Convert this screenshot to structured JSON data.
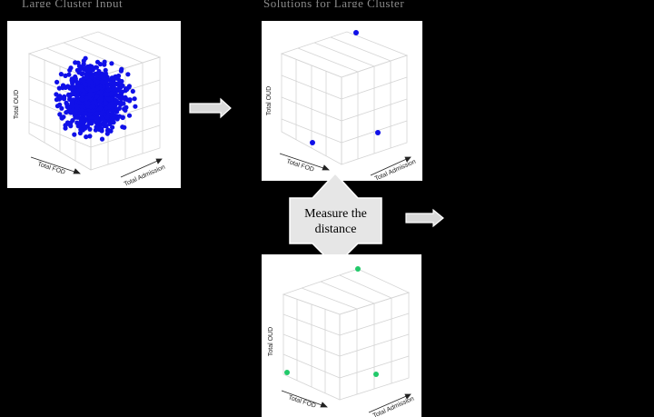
{
  "header": {
    "left_title": "Large Cluster Input",
    "right_title": "Solutions for Large Cluster"
  },
  "colors": {
    "point_blue": "#1010e8",
    "point_green": "#22c96a",
    "panel_bg": "#ffffff",
    "grid": "#d4d4d4",
    "arrow_fill": "#d9d9d9"
  },
  "plots": {
    "input": {
      "xlabel": "Total FOD",
      "ylabel": "Total OUD",
      "zlabel": "Total Admission",
      "point_color": "point_blue"
    },
    "solution": {
      "xlabel": "Total FOD",
      "ylabel": "Total OUD",
      "zlabel": "Total Admission",
      "point_color": "point_blue",
      "points": 3
    },
    "reference": {
      "xlabel": "Total FOD",
      "ylabel": "Total OUD",
      "zlabel": "Total Admission",
      "point_color": "point_green",
      "points": 3
    }
  },
  "measure": {
    "label": "Measure the\ndistance"
  }
}
